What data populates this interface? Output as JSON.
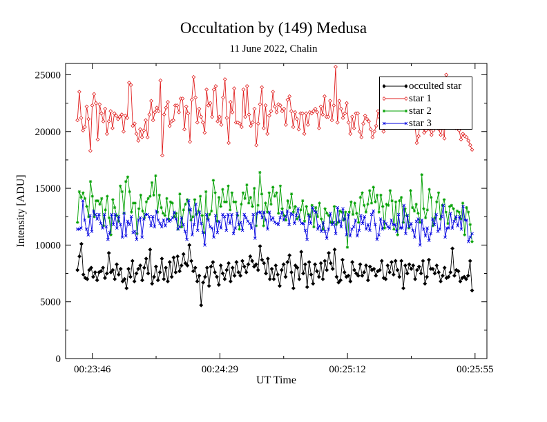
{
  "chart_data": {
    "type": "line",
    "title": "Occultation by (149) Medusa",
    "subtitle": "11 June 2022, Chalin",
    "xlabel": "UT Time",
    "ylabel": "Intensity [ADU]",
    "xlim": [
      "00:23:37",
      "00:25:59"
    ],
    "ylim": [
      0,
      26000
    ],
    "x_ticks": [
      "00:23:46",
      "00:24:29",
      "00:25:12",
      "00:25:55"
    ],
    "y_ticks": [
      0,
      5000,
      10000,
      15000,
      20000,
      25000
    ],
    "x_range": [
      "00:23:41",
      "00:25:54"
    ],
    "grid": false,
    "legend_position": "top-right",
    "series": [
      {
        "name": "occulted star",
        "color": "#000000",
        "marker": "diamond-filled",
        "values": [
          7800,
          9000,
          10100,
          7400,
          7100,
          7000,
          7800,
          8000,
          7200,
          7600,
          6900,
          7600,
          7700,
          8000,
          7100,
          7500,
          9300,
          7600,
          7800,
          7000,
          8300,
          7400,
          7900,
          6800,
          7000,
          6200,
          7900,
          7200,
          8600,
          6800,
          7500,
          7900,
          8200,
          6900,
          8000,
          8800,
          7500,
          9600,
          6600,
          7200,
          8100,
          6900,
          7600,
          8800,
          7000,
          8000,
          6800,
          8500,
          7200,
          8900,
          7600,
          9000,
          7700,
          8200,
          9200,
          8400,
          8200,
          10000,
          8600,
          7700,
          8000,
          6800,
          7300,
          4700,
          6700,
          7200,
          8000,
          6400,
          8100,
          8500,
          7600,
          7200,
          6500,
          8200,
          7500,
          7000,
          7800,
          8400,
          6800,
          8000,
          7300,
          8500,
          7600,
          7300,
          8600,
          8100,
          7600,
          8300,
          9000,
          8600,
          8100,
          8300,
          7800,
          9900,
          8700,
          8400,
          7500,
          8800,
          7000,
          7900,
          7000,
          8200,
          7400,
          6400,
          7800,
          8300,
          7200,
          8500,
          9100,
          7600,
          6200,
          8200,
          8000,
          7000,
          9400,
          7500,
          8300,
          6300,
          8500,
          7400,
          6600,
          8300,
          7700,
          7200,
          8400,
          7000,
          8600,
          7800,
          9300,
          8400,
          7900,
          9600,
          7200,
          6700,
          6900,
          8700,
          7600,
          7200,
          7300,
          6800,
          8500,
          7800,
          7500,
          7300,
          8300,
          7300,
          7600,
          8200,
          6900,
          8100,
          7800,
          7900,
          7300,
          7700,
          7800,
          8600,
          7100,
          7000,
          8200,
          7600,
          8500,
          7400,
          8600,
          7800,
          7200,
          8600,
          6200,
          8200,
          7500,
          8300,
          7900,
          8200,
          7000,
          7800,
          8100,
          7500,
          8600,
          6600,
          7200,
          8700,
          7900,
          7900,
          7500,
          8200,
          7600,
          6800,
          7300,
          8000,
          7100,
          7200,
          7600,
          9700,
          7300,
          7800,
          7700,
          6800,
          7100,
          7200,
          7000,
          7300,
          8600,
          6000
        ]
      },
      {
        "name": "star 1",
        "color": "#e02020",
        "marker": "diamond-open",
        "values": [
          21000,
          23500,
          21200,
          20100,
          20400,
          22200,
          21100,
          18300,
          22300,
          23300,
          22500,
          19300,
          22400,
          21600,
          20900,
          22000,
          19800,
          20900,
          21800,
          20300,
          21600,
          21400,
          21100,
          21300,
          21500,
          20000,
          21400,
          21200,
          24300,
          24100,
          20500,
          20700,
          19800,
          19200,
          20200,
          19500,
          20100,
          21000,
          19500,
          21500,
          22700,
          21000,
          21700,
          22100,
          21800,
          24500,
          17900,
          21500,
          22100,
          22600,
          20500,
          20900,
          21000,
          22300,
          22300,
          21700,
          22900,
          22900,
          20200,
          22200,
          21600,
          19100,
          22800,
          24800,
          23000,
          20800,
          22000,
          21300,
          20800,
          19900,
          23700,
          22300,
          22500,
          21300,
          23700,
          24000,
          20900,
          21300,
          20600,
          23000,
          24600,
          21200,
          19000,
          22600,
          21700,
          23800,
          20800,
          20800,
          20700,
          20400,
          23700,
          21300,
          24000,
          21500,
          20500,
          20800,
          22000,
          18800,
          20700,
          22400,
          23900,
          20300,
          22300,
          19800,
          21400,
          21800,
          23500,
          22200,
          21700,
          22400,
          22300,
          21800,
          22000,
          20600,
          22800,
          23100,
          21800,
          20400,
          21700,
          21100,
          20200,
          21600,
          21600,
          19800,
          21600,
          20600,
          21700,
          21600,
          21800,
          22000,
          21700,
          20300,
          22200,
          21500,
          23100,
          21300,
          21300,
          22700,
          21000,
          22300,
          25700,
          20800,
          22700,
          22000,
          21200,
          21600,
          22500,
          20800,
          19800,
          21300,
          20300,
          21600,
          21600,
          20000,
          19500,
          20700,
          21400,
          21100,
          20900,
          20200,
          19500,
          20000,
          20500,
          21800,
          21200,
          22000,
          20000,
          20400,
          21400,
          21600,
          22700,
          22000,
          23200,
          21700,
          20600,
          22600,
          22000,
          21100,
          20600,
          22300,
          21800,
          21400,
          20800,
          20600,
          19000,
          19600,
          21300,
          21300,
          19900,
          20100,
          21000,
          20200,
          19700,
          20100,
          23800,
          20900,
          20200,
          19700,
          20400,
          19400,
          25000,
          20600,
          20900,
          21200,
          20700,
          20300,
          20300,
          20100,
          19300,
          19800,
          19600,
          19500,
          19200,
          18800,
          18400
        ]
      },
      {
        "name": "star 2",
        "color": "#00a000",
        "marker": "star",
        "values": [
          12000,
          14700,
          14200,
          14600,
          14100,
          13400,
          12500,
          15600,
          14300,
          12500,
          13900,
          13900,
          13600,
          14100,
          11700,
          13100,
          14300,
          12400,
          10900,
          14000,
          13300,
          12600,
          12100,
          15200,
          14700,
          12800,
          15600,
          16000,
          14700,
          12900,
          13700,
          13700,
          11000,
          13200,
          14400,
          13000,
          12400,
          13800,
          14100,
          14300,
          15500,
          14400,
          16100,
          12900,
          14400,
          13300,
          12800,
          12600,
          14100,
          12300,
          13800,
          13700,
          12500,
          12800,
          11400,
          14500,
          11600,
          13100,
          13600,
          14000,
          13100,
          12200,
          12500,
          14000,
          12700,
          13000,
          14300,
          12600,
          11100,
          14700,
          12300,
          12700,
          13000,
          15700,
          14600,
          12100,
          14200,
          13400,
          14900,
          13800,
          13800,
          15200,
          13100,
          14600,
          13800,
          13800,
          12600,
          11400,
          13600,
          14600,
          14100,
          15300,
          13700,
          14200,
          13400,
          15000,
          11700,
          13500,
          16400,
          14500,
          11700,
          13700,
          12900,
          14600,
          13600,
          15100,
          14300,
          14600,
          12800,
          15200,
          13200,
          12600,
          12200,
          13900,
          13300,
          14500,
          12900,
          13400,
          12300,
          12500,
          13100,
          13900,
          12100,
          13400,
          12700,
          12500,
          13500,
          11600,
          13300,
          12500,
          13700,
          12300,
          11400,
          13200,
          12800,
          12600,
          12000,
          12000,
          13400,
          11800,
          12000,
          13000,
          12900,
          12200,
          12900,
          9800,
          12900,
          13800,
          12700,
          13700,
          12800,
          12000,
          14200,
          14600,
          13500,
          12900,
          13600,
          14800,
          13700,
          15100,
          13800,
          14400,
          12900,
          14400,
          13400,
          11500,
          13600,
          13500,
          14800,
          13900,
          11400,
          13800,
          10900,
          13900,
          14200,
          12000,
          13200,
          12600,
          11500,
          14800,
          13300,
          13000,
          13600,
          12800,
          12000,
          16200,
          13200,
          12400,
          13100,
          14900,
          14200,
          11700,
          12400,
          13800,
          14600,
          12300,
          13500,
          14000,
          12900,
          11900,
          13400,
          13500,
          13200,
          12300,
          13000,
          12900,
          12300,
          13700,
          10900,
          13300,
          12900,
          11800,
          10300
        ]
      },
      {
        "name": "star 3",
        "color": "#0000e0",
        "marker": "x",
        "values": [
          11400,
          11400,
          11500,
          13900,
          12200,
          11400,
          10900,
          12600,
          11200,
          13000,
          12700,
          12300,
          12700,
          11900,
          11500,
          12700,
          11600,
          10500,
          11100,
          12700,
          11800,
          12700,
          11500,
          12500,
          11800,
          10700,
          12800,
          10800,
          12100,
          11800,
          12500,
          11100,
          11200,
          10500,
          12200,
          12400,
          10700,
          12300,
          12700,
          12700,
          12500,
          11700,
          12500,
          11600,
          13000,
          12200,
          11900,
          11600,
          12200,
          11700,
          12300,
          12100,
          12200,
          12400,
          12900,
          12300,
          11400,
          11600,
          12400,
          11800,
          11200,
          10500,
          13900,
          13100,
          10900,
          11800,
          13600,
          11300,
          12900,
          11900,
          11100,
          10000,
          12700,
          12200,
          11600,
          11500,
          10700,
          12600,
          11100,
          12100,
          11500,
          12700,
          12500,
          11300,
          12700,
          11900,
          12700,
          11000,
          11500,
          12800,
          11800,
          12000,
          11300,
          12700,
          12400,
          12100,
          11900,
          11500,
          12700,
          10600,
          12800,
          12900,
          12900,
          12400,
          12900,
          12200,
          11400,
          12900,
          12200,
          12400,
          12000,
          11900,
          11800,
          12400,
          12900,
          12200,
          12500,
          13000,
          11800,
          12800,
          12700,
          11900,
          12600,
          13200,
          12200,
          11900,
          11900,
          11300,
          10500,
          12600,
          11900,
          13300,
          13000,
          12900,
          11400,
          11700,
          11200,
          12000,
          11200,
          10600,
          11400,
          12800,
          11800,
          12000,
          11000,
          13300,
          12100,
          11600,
          13200,
          12300,
          10900,
          12700,
          10800,
          11400,
          11600,
          12200,
          10800,
          11300,
          12600,
          11900,
          12500,
          11400,
          11800,
          11300,
          12700,
          13000,
          11800,
          10500,
          10900,
          12300,
          11400,
          12100,
          11900,
          11600,
          11500,
          12200,
          11800,
          11800,
          11200,
          12700,
          11500,
          11500,
          13500,
          11000,
          12600,
          11600,
          11900,
          11300,
          10700,
          12100,
          12300,
          10000,
          12200,
          11400,
          10800,
          11500,
          10400,
          11000,
          12300,
          11800,
          12700,
          11200,
          11400,
          12500,
          13500,
          10700,
          11500,
          11500,
          12800,
          11500,
          12100,
          12500,
          11700,
          12500,
          11400,
          13400,
          12200,
          12200,
          10300,
          10700,
          11000
        ]
      }
    ]
  }
}
